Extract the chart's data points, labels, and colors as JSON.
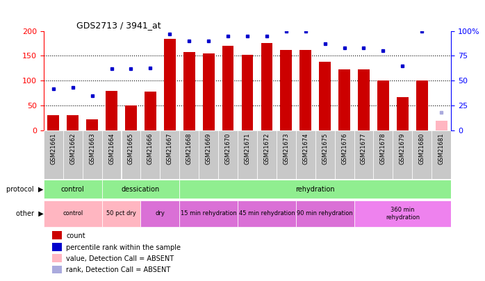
{
  "title": "GDS2713 / 3941_at",
  "samples": [
    "GSM21661",
    "GSM21662",
    "GSM21663",
    "GSM21664",
    "GSM21665",
    "GSM21666",
    "GSM21667",
    "GSM21668",
    "GSM21669",
    "GSM21670",
    "GSM21671",
    "GSM21672",
    "GSM21673",
    "GSM21674",
    "GSM21675",
    "GSM21676",
    "GSM21677",
    "GSM21678",
    "GSM21679",
    "GSM21680",
    "GSM21681"
  ],
  "count_values": [
    30,
    30,
    22,
    80,
    50,
    78,
    184,
    158,
    155,
    170,
    152,
    175,
    162,
    162,
    138,
    122,
    122,
    100,
    67,
    100,
    20
  ],
  "rank_values": [
    42,
    43,
    35,
    62,
    62,
    63,
    97,
    90,
    90,
    95,
    95,
    95,
    100,
    100,
    87,
    83,
    83,
    80,
    65,
    100,
    18
  ],
  "absent_flags": [
    false,
    false,
    false,
    false,
    false,
    false,
    false,
    false,
    false,
    false,
    false,
    false,
    false,
    false,
    false,
    false,
    false,
    false,
    false,
    false,
    true
  ],
  "protocol_groups": [
    {
      "label": "control",
      "start": 0,
      "end": 2,
      "color": "#90EE90"
    },
    {
      "label": "dessication",
      "start": 3,
      "end": 6,
      "color": "#66CC66"
    },
    {
      "label": "rehydration",
      "start": 7,
      "end": 20,
      "color": "#44BB44"
    }
  ],
  "other_groups": [
    {
      "label": "control",
      "start": 0,
      "end": 2,
      "color": "#FFB6C1"
    },
    {
      "label": "50 pct dry",
      "start": 3,
      "end": 4,
      "color": "#FFB6C1"
    },
    {
      "label": "dry",
      "start": 5,
      "end": 6,
      "color": "#DA70D6"
    },
    {
      "label": "15 min rehydration",
      "start": 7,
      "end": 9,
      "color": "#DA70D6"
    },
    {
      "label": "45 min rehydration",
      "start": 10,
      "end": 12,
      "color": "#DA70D6"
    },
    {
      "label": "90 min rehydration",
      "start": 13,
      "end": 15,
      "color": "#DA70D6"
    },
    {
      "label": "360 min\nrehydration",
      "start": 16,
      "end": 20,
      "color": "#EE82EE"
    }
  ],
  "ylim_left": [
    0,
    200
  ],
  "ylim_right": [
    0,
    100
  ],
  "bar_color": "#CC0000",
  "rank_color": "#0000CC",
  "absent_bar_color": "#FFB6C1",
  "absent_rank_color": "#AAAADD",
  "yticks_left": [
    0,
    50,
    100,
    150,
    200
  ],
  "yticks_right": [
    0,
    25,
    50,
    75,
    100
  ],
  "ytick_labels_right": [
    "0",
    "25",
    "50",
    "75",
    "100%"
  ],
  "legend_items": [
    {
      "color": "#CC0000",
      "label": "count"
    },
    {
      "color": "#0000CC",
      "label": "percentile rank within the sample"
    },
    {
      "color": "#FFB6C1",
      "label": "value, Detection Call = ABSENT"
    },
    {
      "color": "#AAAADD",
      "label": "rank, Detection Call = ABSENT"
    }
  ]
}
